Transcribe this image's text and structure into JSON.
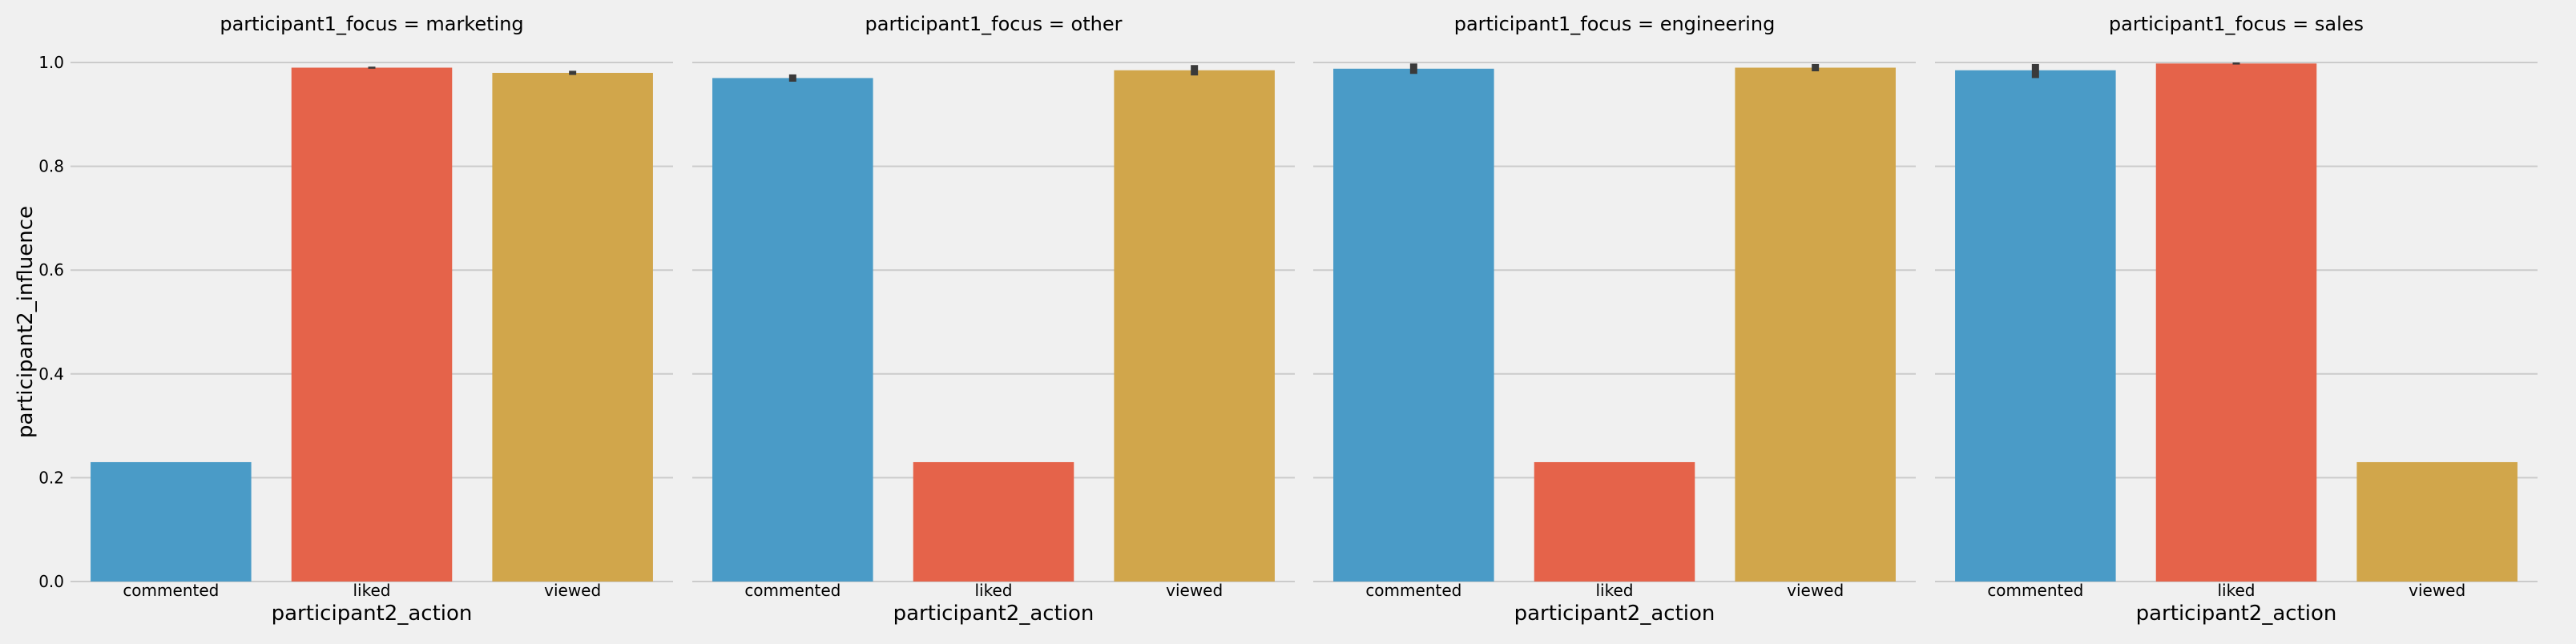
{
  "chart_data": {
    "type": "bar",
    "style": "fivethirtyeight facet grid",
    "facet_variable": "participant1_focus",
    "ylabel": "participant2_influence",
    "xlabel": "participant2_action",
    "ylim": [
      0,
      1.0
    ],
    "yticks": [
      "0.0",
      "0.2",
      "0.4",
      "0.6",
      "0.8",
      "1.0"
    ],
    "grid": true,
    "categories": [
      "commented",
      "liked",
      "viewed"
    ],
    "colors": {
      "commented": "#4a9bc7",
      "liked": "#e5634a",
      "viewed": "#d1a64b",
      "error_bar": "#3a3a3a",
      "grid": "#cbcbcb",
      "background": "#f0f0f0"
    },
    "panels": [
      {
        "title": "participant1_focus = marketing",
        "values": [
          0.23,
          0.99,
          0.98
        ],
        "ci": [
          null,
          [
            0.988,
            0.992
          ],
          [
            0.976,
            0.984
          ]
        ]
      },
      {
        "title": "participant1_focus = other",
        "values": [
          0.97,
          0.23,
          0.985
        ],
        "ci": [
          [
            0.963,
            0.977
          ],
          null,
          [
            0.975,
            0.995
          ]
        ]
      },
      {
        "title": "participant1_focus = engineering",
        "values": [
          0.988,
          0.23,
          0.99
        ],
        "ci": [
          [
            0.978,
            0.998
          ],
          null,
          [
            0.983,
            0.997
          ]
        ]
      },
      {
        "title": "participant1_focus = sales",
        "values": [
          0.985,
          0.998,
          0.23
        ],
        "ci": [
          [
            0.97,
            0.997
          ],
          [
            0.996,
            1.0
          ],
          null
        ]
      }
    ]
  }
}
